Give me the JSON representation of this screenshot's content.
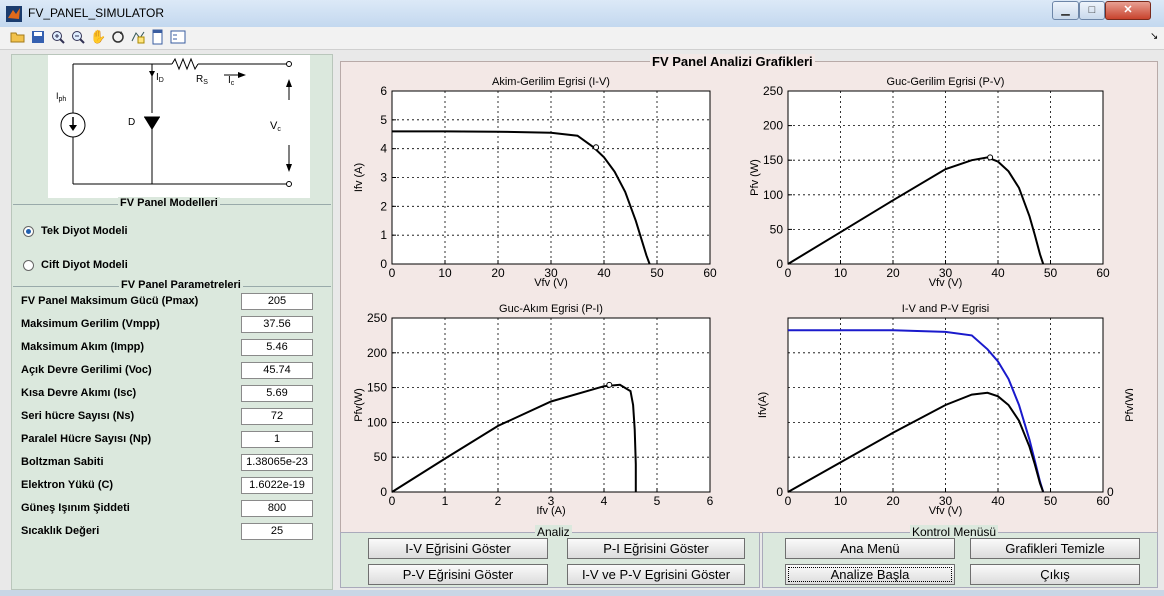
{
  "window": {
    "title": "FV_PANEL_SIMULATOR"
  },
  "toolbar": {
    "items": [
      "open-icon",
      "save-icon",
      "zoom-in-icon",
      "zoom-out-icon",
      "pan-icon",
      "rotate-icon",
      "data-cursor-icon",
      "colorbar-icon",
      "legend-icon"
    ],
    "corner": "↘"
  },
  "left": {
    "models_title": "FV Panel Modelleri",
    "radio": [
      {
        "label": "Tek Diyot Modeli",
        "selected": true
      },
      {
        "label": "Cift Diyot Modeli",
        "selected": false
      }
    ],
    "params_title": "FV Panel Parametreleri",
    "params": [
      {
        "label": "FV Panel Maksimum Gücü (Pmax)",
        "value": "205"
      },
      {
        "label": "Maksimum Gerilim (Vmpp)",
        "value": "37.56"
      },
      {
        "label": "Maksimum Akım (Impp)",
        "value": "5.46"
      },
      {
        "label": "Açık Devre Gerilimi (Voc)",
        "value": "45.74"
      },
      {
        "label": "Kısa Devre Akımı (Isc)",
        "value": "5.69"
      },
      {
        "label": "Seri hücre Sayısı (Ns)",
        "value": "72"
      },
      {
        "label": "Paralel Hücre Sayısı (Np)",
        "value": "1"
      },
      {
        "label": "Boltzman Sabiti",
        "value": "1.38065e-23"
      },
      {
        "label": "Elektron Yükü (C)",
        "value": "1.6022e-19"
      },
      {
        "label": "Güneş Işınım Şiddeti",
        "value": "800"
      },
      {
        "label": "Sıcaklık Değeri",
        "value": "25"
      }
    ],
    "circuit": {
      "iph": "I",
      "iph_sub": "ph",
      "diode": "D",
      "id": "I",
      "id_sub": "D",
      "rs": "R",
      "rs_sub": "S",
      "ic": "I",
      "ic_sub": "c",
      "vc": "V",
      "vc_sub": "c"
    }
  },
  "graphs": {
    "title": "FV Panel Analizi Grafikleri"
  },
  "analiz": {
    "title": "Analiz",
    "buttons": [
      "I-V Eğrisini Göster",
      "P-I Eğrisini Göster",
      "P-V Eğrisini Göster",
      "I-V ve P-V Egrisini Göster"
    ]
  },
  "kontrol": {
    "title": "Kontrol Menüsü",
    "buttons": [
      "Ana Menü",
      "Grafikleri Temizle",
      "Analize Başla",
      "Çıkış"
    ]
  },
  "colors": {
    "curve": "#000000",
    "curve_blue": "#1a1acc",
    "grid": "#000000"
  },
  "chart_data": [
    {
      "type": "line",
      "title": "Akim-Gerilim Egrisi (I-V)",
      "xlabel": "Vfv (V)",
      "ylabel": "Ifv (A)",
      "xlim": [
        0,
        60
      ],
      "ylim": [
        0,
        6
      ],
      "xticks": [
        "0",
        "10",
        "20",
        "30",
        "40",
        "50",
        "60"
      ],
      "yticks": [
        "0",
        "1",
        "2",
        "3",
        "4",
        "5",
        "6"
      ],
      "grid": true,
      "x": [
        0,
        10,
        20,
        30,
        35,
        38,
        40,
        42,
        44,
        46,
        47,
        48,
        48.6
      ],
      "y": [
        4.6,
        4.6,
        4.59,
        4.55,
        4.45,
        4.05,
        3.7,
        3.2,
        2.5,
        1.5,
        0.9,
        0.3,
        0
      ],
      "marker": {
        "x": 38.5,
        "y": 4.05
      }
    },
    {
      "type": "line",
      "title": "Guc-Gerilim Egrisi (P-V)",
      "xlabel": "Vfv  (V)",
      "ylabel": "Pfv  (W)",
      "xlim": [
        0,
        60
      ],
      "ylim": [
        0,
        250
      ],
      "xticks": [
        "0",
        "10",
        "20",
        "30",
        "40",
        "50",
        "60"
      ],
      "yticks": [
        "0",
        "50",
        "100",
        "150",
        "200",
        "250"
      ],
      "grid": true,
      "x": [
        0,
        10,
        20,
        30,
        35,
        38,
        40,
        42,
        44,
        46,
        47,
        48,
        48.6
      ],
      "y": [
        0,
        46,
        92,
        137,
        150,
        154,
        148,
        134,
        110,
        69,
        42,
        14,
        0
      ],
      "marker": {
        "x": 38.5,
        "y": 154
      }
    },
    {
      "type": "line",
      "title": "Guc-Akım Egrisi  (P-I)",
      "xlabel": "Ifv (A)",
      "ylabel": "Pfv(W)",
      "xlim": [
        0,
        6
      ],
      "ylim": [
        0,
        250
      ],
      "xticks": [
        "0",
        "1",
        "2",
        "3",
        "4",
        "5",
        "6"
      ],
      "yticks": [
        "0",
        "50",
        "100",
        "150",
        "200",
        "250"
      ],
      "grid": true,
      "x": [
        0,
        1,
        2,
        3,
        4,
        4.3,
        4.5,
        4.55,
        4.58,
        4.6,
        4.6
      ],
      "y": [
        0,
        48,
        95,
        130,
        152,
        154,
        145,
        125,
        90,
        40,
        0
      ],
      "marker": {
        "x": 4.1,
        "y": 154
      }
    },
    {
      "type": "line",
      "title": "I-V and P-V Egrisi",
      "xlabel": "Vfv (V)",
      "ylabel_left": "Ifv(A)",
      "ylabel_right": "Pfv(W)",
      "xlim": [
        0,
        60
      ],
      "ylim": [
        0,
        1
      ],
      "xticks": [
        "0",
        "10",
        "20",
        "30",
        "40",
        "50",
        "60"
      ],
      "yticks_left": [
        "0"
      ],
      "yticks_right": [
        "0"
      ],
      "grid": true,
      "series": [
        {
          "x": [
            0,
            10,
            20,
            30,
            35,
            38,
            40,
            42,
            44,
            46,
            47,
            48,
            48.6
          ],
          "y": [
            0.93,
            0.93,
            0.93,
            0.92,
            0.9,
            0.82,
            0.75,
            0.65,
            0.5,
            0.3,
            0.18,
            0.06,
            0
          ]
        },
        {
          "x": [
            0,
            10,
            20,
            30,
            35,
            38,
            40,
            42,
            44,
            46,
            47,
            48,
            48.6
          ],
          "y": [
            0,
            0.17,
            0.34,
            0.5,
            0.56,
            0.57,
            0.55,
            0.5,
            0.41,
            0.26,
            0.16,
            0.05,
            0
          ]
        }
      ]
    }
  ]
}
